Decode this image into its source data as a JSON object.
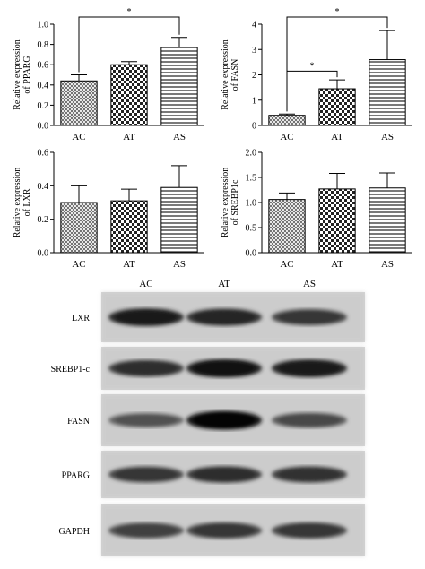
{
  "chart_data": [
    {
      "type": "bar",
      "ylabel": [
        "Relative expression",
        "of PPARG"
      ],
      "categories": [
        "AC",
        "AT",
        "AS"
      ],
      "values": [
        0.44,
        0.6,
        0.77
      ],
      "errors": [
        0.06,
        0.03,
        0.1
      ],
      "ylim": [
        0,
        1.0
      ],
      "yticks": [
        "0.0",
        "0.2",
        "0.4",
        "0.6",
        "0.8",
        "1.0"
      ],
      "significance": [
        {
          "from": "AC",
          "to": "AS",
          "label": "*"
        }
      ],
      "fill_patterns": [
        "crosshatch",
        "checker",
        "horizontal-lines"
      ]
    },
    {
      "type": "bar",
      "ylabel": [
        "Relative expression",
        "of FASN"
      ],
      "categories": [
        "AC",
        "AT",
        "AS"
      ],
      "values": [
        0.4,
        1.45,
        2.6
      ],
      "errors": [
        0.05,
        0.35,
        1.15
      ],
      "ylim": [
        0,
        4
      ],
      "yticks": [
        "0",
        "1",
        "2",
        "3",
        "4"
      ],
      "significance": [
        {
          "from": "AC",
          "to": "AT",
          "label": "*"
        },
        {
          "from": "AC",
          "to": "AS",
          "label": "*"
        }
      ],
      "fill_patterns": [
        "crosshatch",
        "checker",
        "horizontal-lines"
      ]
    },
    {
      "type": "bar",
      "ylabel": [
        "Relative expression",
        "of LXR"
      ],
      "categories": [
        "AC",
        "AT",
        "AS"
      ],
      "values": [
        0.3,
        0.31,
        0.39
      ],
      "errors": [
        0.1,
        0.07,
        0.13
      ],
      "ylim": [
        0,
        0.6
      ],
      "yticks": [
        "0.0",
        "0.2",
        "0.4",
        "0.6"
      ],
      "significance": [],
      "fill_patterns": [
        "crosshatch",
        "checker",
        "horizontal-lines"
      ]
    },
    {
      "type": "bar",
      "ylabel": [
        "Relative expression",
        "of SREBP1c"
      ],
      "categories": [
        "AC",
        "AT",
        "AS"
      ],
      "values": [
        1.06,
        1.27,
        1.29
      ],
      "errors": [
        0.13,
        0.31,
        0.3
      ],
      "ylim": [
        0,
        2.0
      ],
      "yticks": [
        "0.0",
        "0.5",
        "1.0",
        "1.5",
        "2.0"
      ],
      "significance": [],
      "fill_patterns": [
        "crosshatch",
        "checker",
        "horizontal-lines"
      ]
    }
  ],
  "blot": {
    "lanes": [
      "AC",
      "AT",
      "AS"
    ],
    "rows": [
      {
        "label": "LXR",
        "intensity": [
          0.85,
          0.8,
          0.7
        ]
      },
      {
        "label": "SREBP1-c",
        "intensity": [
          0.75,
          0.9,
          0.85
        ]
      },
      {
        "label": "FASN",
        "intensity": [
          0.55,
          0.95,
          0.6
        ]
      },
      {
        "label": "PPARG",
        "intensity": [
          0.7,
          0.75,
          0.72
        ]
      },
      {
        "label": "GAPDH",
        "intensity": [
          0.65,
          0.7,
          0.7
        ]
      }
    ]
  }
}
